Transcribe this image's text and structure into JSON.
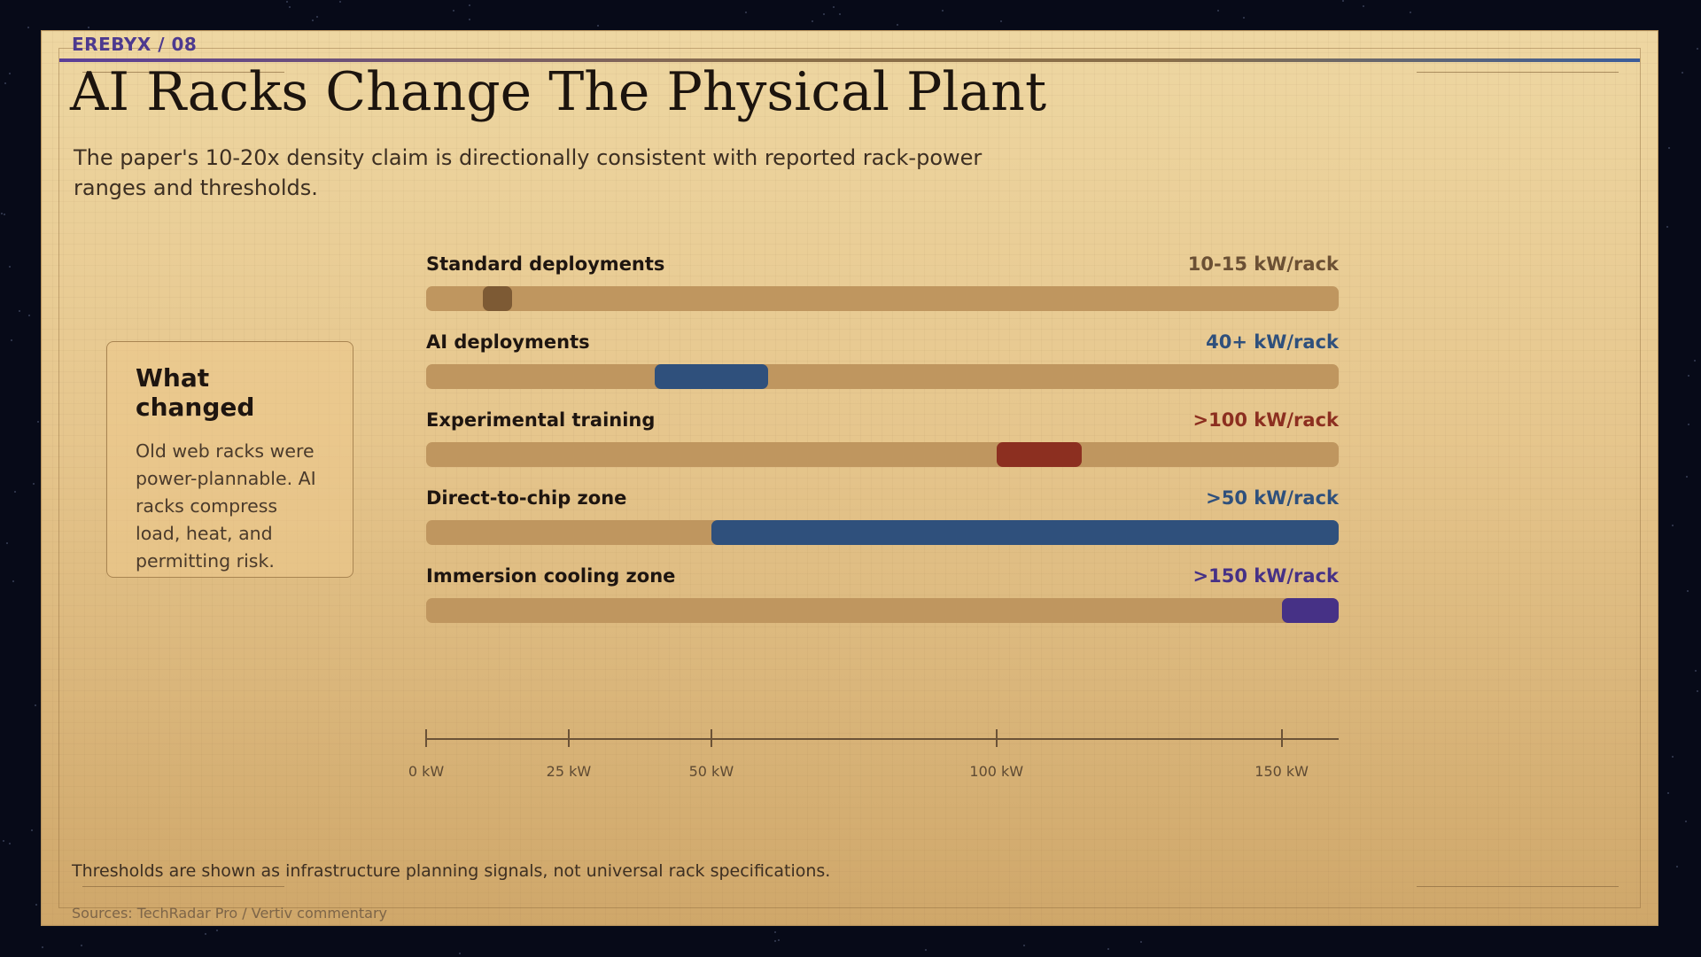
{
  "header": {
    "brand": "EREBYX / 08"
  },
  "slide": {
    "title": "AI Racks Change The Physical Plant",
    "subtitle": "The paper's 10-20x density claim is directionally consistent with reported rack-power ranges and thresholds."
  },
  "sidecard": {
    "heading": "What changed",
    "body": "Old web racks were power-plannable. AI racks compress load, heat, and permitting risk."
  },
  "colors": {
    "track": "#bf965f",
    "standard": "#7d5a34",
    "ai": "#2f507c",
    "experimental": "#8c2f20",
    "direct_to_chip": "#2f507c",
    "immersion": "#463186"
  },
  "chart_data": {
    "type": "bar",
    "orientation": "horizontal",
    "xlim": [
      0,
      160
    ],
    "x_unit": "kW",
    "ticks": [
      0,
      25,
      50,
      100,
      150
    ],
    "tick_labels": [
      "0 kW",
      "25 kW",
      "50 kW",
      "100 kW",
      "150 kW"
    ],
    "rows": [
      {
        "label": "Standard deployments",
        "value_label": "10-15 kW/rack",
        "start": 10,
        "end": 15,
        "color": "#7d5a34",
        "label_color": "#6b5034"
      },
      {
        "label": "AI deployments",
        "value_label": "40+ kW/rack",
        "start": 40,
        "end": 60,
        "color": "#2f507c",
        "label_color": "#2f507c"
      },
      {
        "label": "Experimental training",
        "value_label": ">100 kW/rack",
        "start": 100,
        "end": 115,
        "color": "#8c2f20",
        "label_color": "#8c2f20"
      },
      {
        "label": "Direct-to-chip zone",
        "value_label": ">50 kW/rack",
        "start": 50,
        "end": 160,
        "color": "#2f507c",
        "label_color": "#2f507c"
      },
      {
        "label": "Immersion cooling zone",
        "value_label": ">150 kW/rack",
        "start": 150,
        "end": 160,
        "color": "#463186",
        "label_color": "#463186"
      }
    ]
  },
  "footer": {
    "note": "Thresholds are shown as infrastructure planning signals, not universal rack specifications.",
    "sources": "Sources: TechRadar Pro / Vertiv commentary"
  }
}
